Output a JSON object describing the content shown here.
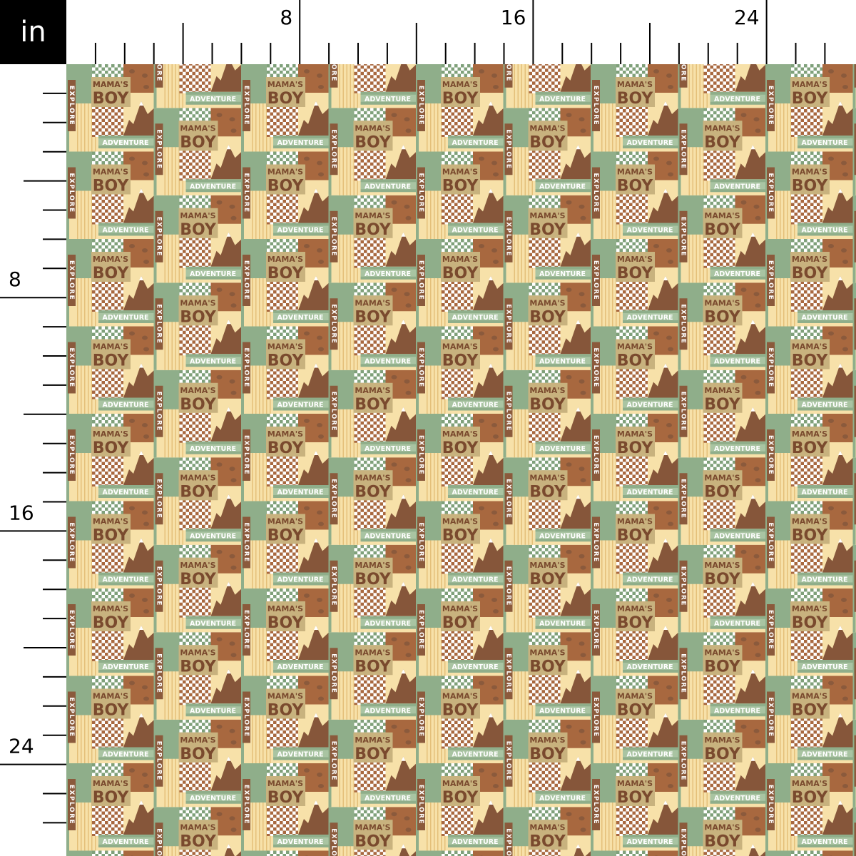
{
  "ruler": {
    "unit": "in",
    "top_labels": [
      "8",
      "16",
      "24"
    ],
    "left_labels": [
      "8",
      "16",
      "24"
    ]
  },
  "motif": {
    "line1": "MAMA'S",
    "line2": "BOY",
    "explore": "EXPLORE",
    "adventure": "ADVENTURE"
  },
  "colors": {
    "sage": "#8fae8a",
    "brown": "#a8683f",
    "dark_brown": "#86563a",
    "tan": "#c8b27e",
    "cream": "#f7e1a9",
    "stripe": "#e4c07a"
  }
}
